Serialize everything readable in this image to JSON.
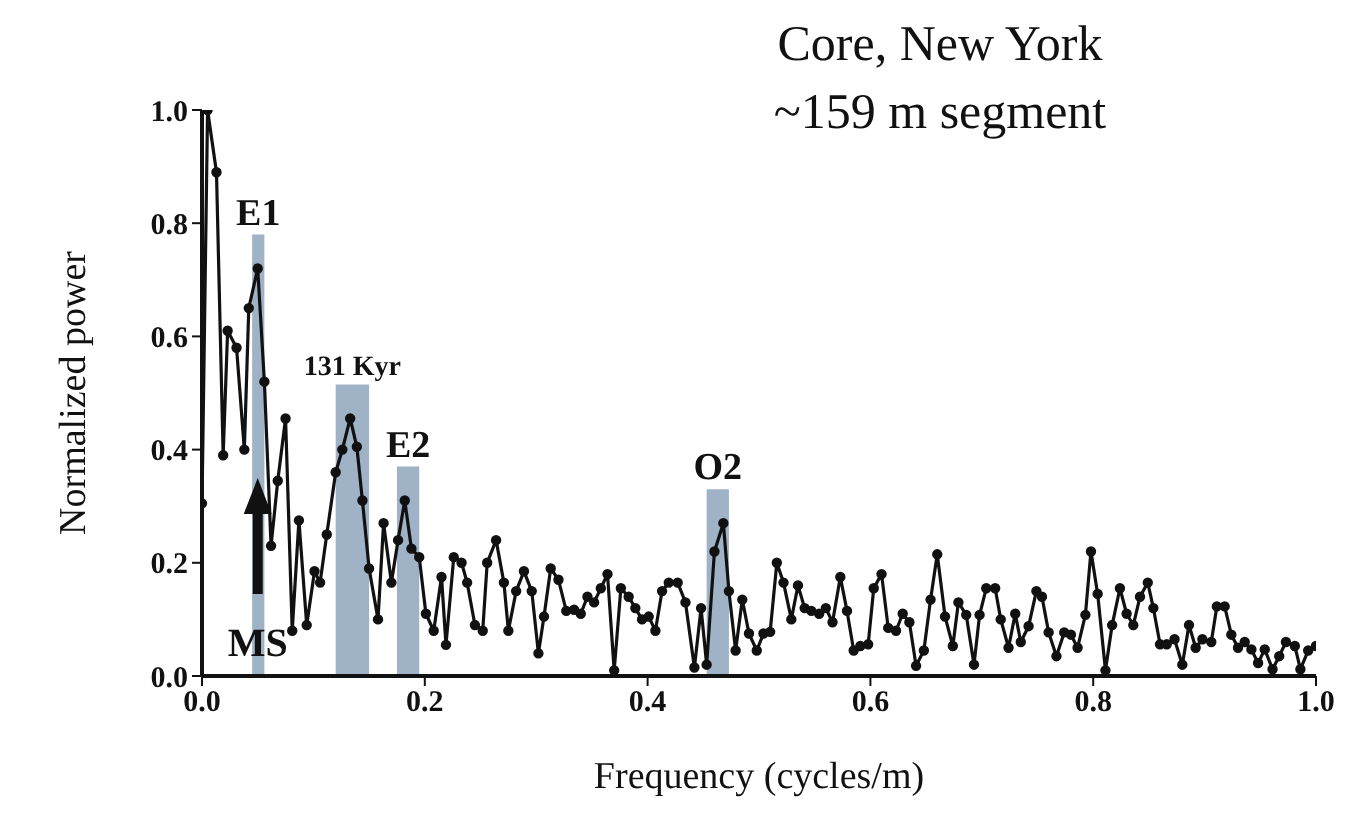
{
  "chart_data": {
    "type": "line",
    "title": "Core, New York",
    "subtitle": "~159 m segment",
    "xlabel": "Frequency  (cycles/m)",
    "ylabel": "Normalized power",
    "xlim": [
      0,
      1
    ],
    "ylim": [
      0,
      1
    ],
    "xticks": [
      {
        "value": 0,
        "label": "0.0"
      },
      {
        "value": 0.2,
        "label": "0.2"
      },
      {
        "value": 0.4,
        "label": "0.4"
      },
      {
        "value": 0.6,
        "label": "0.6"
      },
      {
        "value": 0.8,
        "label": "0.8"
      },
      {
        "value": 1,
        "label": "1.0"
      }
    ],
    "yticks": [
      {
        "value": 0,
        "label": "0.0"
      },
      {
        "value": 0.2,
        "label": "0.2"
      },
      {
        "value": 0.4,
        "label": "0.4"
      },
      {
        "value": 0.6,
        "label": "0.6"
      },
      {
        "value": 0.8,
        "label": "0.8"
      },
      {
        "value": 1,
        "label": "1.0"
      }
    ],
    "marker": "circle",
    "line_style": "solid",
    "series": [
      {
        "color": "#111111",
        "x": [
          0,
          0.005,
          0.013,
          0.019,
          0.023,
          0.031,
          0.038,
          0.042,
          0.05,
          0.056,
          0.062,
          0.068,
          0.075,
          0.081,
          0.087,
          0.094,
          0.101,
          0.106,
          0.112,
          0.12,
          0.126,
          0.133,
          0.139,
          0.144,
          0.15,
          0.158,
          0.163,
          0.17,
          0.176,
          0.182,
          0.188,
          0.195,
          0.201,
          0.208,
          0.215,
          0.219,
          0.226,
          0.233,
          0.238,
          0.245,
          0.252,
          0.256,
          0.264,
          0.271,
          0.275,
          0.282,
          0.289,
          0.296,
          0.302,
          0.307,
          0.313,
          0.32,
          0.327,
          0.334,
          0.34,
          0.346,
          0.352,
          0.358,
          0.364,
          0.37,
          0.376,
          0.383,
          0.389,
          0.395,
          0.401,
          0.407,
          0.413,
          0.419,
          0.427,
          0.434,
          0.442,
          0.448,
          0.453,
          0.46,
          0.468,
          0.473,
          0.479,
          0.485,
          0.491,
          0.498,
          0.504,
          0.51,
          0.516,
          0.522,
          0.529,
          0.535,
          0.541,
          0.547,
          0.554,
          0.56,
          0.566,
          0.573,
          0.579,
          0.585,
          0.591,
          0.598,
          0.603,
          0.61,
          0.616,
          0.623,
          0.629,
          0.635,
          0.641,
          0.648,
          0.654,
          0.66,
          0.667,
          0.674,
          0.679,
          0.686,
          0.693,
          0.698,
          0.704,
          0.712,
          0.717,
          0.724,
          0.73,
          0.735,
          0.742,
          0.749,
          0.754,
          0.76,
          0.767,
          0.774,
          0.78,
          0.786,
          0.793,
          0.798,
          0.804,
          0.811,
          0.817,
          0.824,
          0.83,
          0.836,
          0.842,
          0.849,
          0.854,
          0.86,
          0.866,
          0.873,
          0.88,
          0.886,
          0.892,
          0.898,
          0.906,
          0.911,
          0.918,
          0.924,
          0.93,
          0.936,
          0.942,
          0.948,
          0.954,
          0.961,
          0.967,
          0.973,
          0.981,
          0.986,
          0.993,
          1.0
        ],
        "values": [
          0.305,
          1.0,
          0.89,
          0.39,
          0.61,
          0.58,
          0.4,
          0.65,
          0.72,
          0.52,
          0.23,
          0.345,
          0.455,
          0.08,
          0.275,
          0.09,
          0.185,
          0.165,
          0.25,
          0.36,
          0.4,
          0.455,
          0.405,
          0.31,
          0.19,
          0.1,
          0.27,
          0.165,
          0.24,
          0.31,
          0.225,
          0.21,
          0.11,
          0.08,
          0.175,
          0.055,
          0.21,
          0.2,
          0.165,
          0.09,
          0.08,
          0.2,
          0.24,
          0.165,
          0.08,
          0.15,
          0.185,
          0.15,
          0.04,
          0.105,
          0.19,
          0.17,
          0.115,
          0.117,
          0.11,
          0.14,
          0.13,
          0.155,
          0.18,
          0.01,
          0.155,
          0.14,
          0.12,
          0.1,
          0.105,
          0.08,
          0.15,
          0.165,
          0.165,
          0.13,
          0.015,
          0.12,
          0.02,
          0.22,
          0.27,
          0.15,
          0.045,
          0.135,
          0.075,
          0.045,
          0.075,
          0.078,
          0.2,
          0.165,
          0.1,
          0.16,
          0.12,
          0.115,
          0.11,
          0.12,
          0.095,
          0.175,
          0.115,
          0.045,
          0.053,
          0.056,
          0.155,
          0.18,
          0.085,
          0.08,
          0.11,
          0.095,
          0.018,
          0.045,
          0.135,
          0.215,
          0.105,
          0.053,
          0.13,
          0.108,
          0.02,
          0.108,
          0.155,
          0.155,
          0.1,
          0.05,
          0.11,
          0.06,
          0.088,
          0.15,
          0.14,
          0.077,
          0.035,
          0.077,
          0.073,
          0.05,
          0.108,
          0.22,
          0.145,
          0.01,
          0.09,
          0.155,
          0.11,
          0.09,
          0.14,
          0.165,
          0.12,
          0.056,
          0.056,
          0.065,
          0.02,
          0.09,
          0.05,
          0.065,
          0.06,
          0.123,
          0.123,
          0.073,
          0.05,
          0.06,
          0.047,
          0.023,
          0.047,
          0.012,
          0.035,
          0.06,
          0.053,
          0.012,
          0.045,
          0.053
        ]
      }
    ],
    "bands": [
      {
        "axis": "x",
        "from": 0.045,
        "to": 0.056,
        "label": "E1",
        "color": "#9fb2c6"
      },
      {
        "axis": "x",
        "from": 0.12,
        "to": 0.15,
        "label": "131 Kyr",
        "color": "#9fb2c6"
      },
      {
        "axis": "x",
        "from": 0.175,
        "to": 0.195,
        "label": "E2",
        "color": "#9fb2c6"
      },
      {
        "axis": "x",
        "from": 0.453,
        "to": 0.473,
        "label": "O2",
        "color": "#9fb2c6"
      }
    ],
    "annotations": [
      {
        "text": "MS",
        "x": 0.05,
        "y": 0.06
      }
    ]
  }
}
